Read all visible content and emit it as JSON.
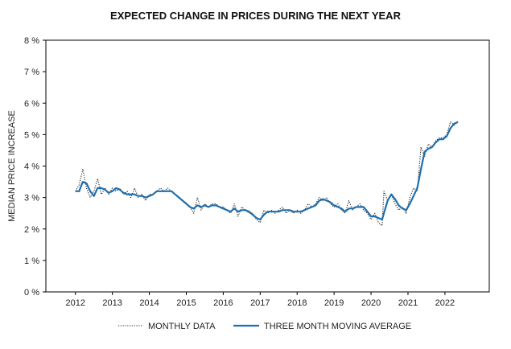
{
  "chart_data": {
    "type": "line",
    "title": "EXPECTED CHANGE IN PRICES DURING THE NEXT YEAR",
    "ylabel": "MEDIAN PRICE INCREASE",
    "xlabel": "",
    "ylim": [
      0,
      8
    ],
    "xlim": [
      2011.2,
      2023.2
    ],
    "yticks": [
      0,
      1,
      2,
      3,
      4,
      5,
      6,
      7,
      8
    ],
    "ytick_labels": [
      "0 %",
      "1 %",
      "2 %",
      "3 %",
      "4 %",
      "5 %",
      "6 %",
      "7 %",
      "8 %"
    ],
    "xtick_labels": [
      "2012",
      "2013",
      "2014",
      "2015",
      "2016",
      "2017",
      "2018",
      "2019",
      "2020",
      "2021",
      "2022"
    ],
    "xtick_positions": [
      2012,
      2013,
      2014,
      2015,
      2016,
      2017,
      2018,
      2019,
      2020,
      2021,
      2022
    ],
    "grid": false,
    "legend_position": "bottom",
    "series": [
      {
        "name": "MONTHLY DATA",
        "style": "dotted",
        "color": "#222222",
        "points": [
          [
            2012.0,
            3.2
          ],
          [
            2012.1,
            3.4
          ],
          [
            2012.2,
            3.9
          ],
          [
            2012.3,
            3.3
          ],
          [
            2012.4,
            3.0
          ],
          [
            2012.5,
            3.2
          ],
          [
            2012.6,
            3.6
          ],
          [
            2012.7,
            3.1
          ],
          [
            2012.8,
            3.3
          ],
          [
            2012.9,
            3.1
          ],
          [
            2013.0,
            3.3
          ],
          [
            2013.1,
            3.2
          ],
          [
            2013.2,
            3.3
          ],
          [
            2013.3,
            3.1
          ],
          [
            2013.4,
            3.2
          ],
          [
            2013.5,
            3.0
          ],
          [
            2013.6,
            3.3
          ],
          [
            2013.7,
            3.0
          ],
          [
            2013.8,
            3.1
          ],
          [
            2013.9,
            2.9
          ],
          [
            2014.0,
            3.1
          ],
          [
            2014.1,
            3.1
          ],
          [
            2014.2,
            3.2
          ],
          [
            2014.3,
            3.3
          ],
          [
            2014.4,
            3.2
          ],
          [
            2014.5,
            3.3
          ],
          [
            2014.6,
            3.2
          ],
          [
            2014.7,
            3.1
          ],
          [
            2014.8,
            3.0
          ],
          [
            2014.9,
            2.9
          ],
          [
            2015.0,
            2.8
          ],
          [
            2015.1,
            2.7
          ],
          [
            2015.2,
            2.5
          ],
          [
            2015.3,
            3.0
          ],
          [
            2015.4,
            2.6
          ],
          [
            2015.5,
            2.8
          ],
          [
            2015.6,
            2.7
          ],
          [
            2015.7,
            2.8
          ],
          [
            2015.8,
            2.8
          ],
          [
            2015.9,
            2.7
          ],
          [
            2016.0,
            2.7
          ],
          [
            2016.1,
            2.6
          ],
          [
            2016.2,
            2.5
          ],
          [
            2016.3,
            2.8
          ],
          [
            2016.4,
            2.4
          ],
          [
            2016.5,
            2.7
          ],
          [
            2016.6,
            2.6
          ],
          [
            2016.7,
            2.5
          ],
          [
            2016.8,
            2.5
          ],
          [
            2016.9,
            2.3
          ],
          [
            2017.0,
            2.2
          ],
          [
            2017.1,
            2.6
          ],
          [
            2017.2,
            2.5
          ],
          [
            2017.3,
            2.6
          ],
          [
            2017.4,
            2.5
          ],
          [
            2017.5,
            2.6
          ],
          [
            2017.6,
            2.7
          ],
          [
            2017.7,
            2.5
          ],
          [
            2017.8,
            2.6
          ],
          [
            2017.9,
            2.5
          ],
          [
            2018.0,
            2.6
          ],
          [
            2018.1,
            2.5
          ],
          [
            2018.2,
            2.6
          ],
          [
            2018.3,
            2.8
          ],
          [
            2018.4,
            2.7
          ],
          [
            2018.5,
            2.8
          ],
          [
            2018.6,
            3.0
          ],
          [
            2018.7,
            2.9
          ],
          [
            2018.8,
            3.0
          ],
          [
            2018.9,
            2.8
          ],
          [
            2019.0,
            2.7
          ],
          [
            2019.1,
            2.8
          ],
          [
            2019.2,
            2.6
          ],
          [
            2019.3,
            2.5
          ],
          [
            2019.4,
            2.9
          ],
          [
            2019.5,
            2.6
          ],
          [
            2019.6,
            2.7
          ],
          [
            2019.7,
            2.8
          ],
          [
            2019.8,
            2.6
          ],
          [
            2019.9,
            2.5
          ],
          [
            2020.0,
            2.3
          ],
          [
            2020.1,
            2.5
          ],
          [
            2020.2,
            2.2
          ],
          [
            2020.3,
            2.1
          ],
          [
            2020.35,
            3.2
          ],
          [
            2020.45,
            2.9
          ],
          [
            2020.55,
            3.1
          ],
          [
            2020.65,
            2.8
          ],
          [
            2020.75,
            2.6
          ],
          [
            2020.85,
            2.7
          ],
          [
            2020.95,
            2.5
          ],
          [
            2021.05,
            3.0
          ],
          [
            2021.15,
            3.3
          ],
          [
            2021.25,
            3.2
          ],
          [
            2021.35,
            4.6
          ],
          [
            2021.45,
            4.3
          ],
          [
            2021.55,
            4.7
          ],
          [
            2021.65,
            4.6
          ],
          [
            2021.75,
            4.8
          ],
          [
            2021.85,
            4.9
          ],
          [
            2021.95,
            4.9
          ],
          [
            2022.05,
            5.0
          ],
          [
            2022.15,
            5.4
          ],
          [
            2022.25,
            5.3
          ],
          [
            2022.35,
            5.4
          ]
        ]
      },
      {
        "name": "THREE MONTH MOVING AVERAGE",
        "style": "solid",
        "color": "#1f6fae",
        "points": [
          [
            2012.0,
            3.2
          ],
          [
            2012.1,
            3.2
          ],
          [
            2012.2,
            3.5
          ],
          [
            2012.3,
            3.45
          ],
          [
            2012.4,
            3.2
          ],
          [
            2012.5,
            3.05
          ],
          [
            2012.6,
            3.3
          ],
          [
            2012.7,
            3.3
          ],
          [
            2012.8,
            3.25
          ],
          [
            2012.9,
            3.15
          ],
          [
            2013.0,
            3.2
          ],
          [
            2013.1,
            3.3
          ],
          [
            2013.2,
            3.25
          ],
          [
            2013.3,
            3.15
          ],
          [
            2013.4,
            3.1
          ],
          [
            2013.5,
            3.1
          ],
          [
            2013.6,
            3.1
          ],
          [
            2013.7,
            3.05
          ],
          [
            2013.8,
            3.05
          ],
          [
            2013.9,
            3.0
          ],
          [
            2014.0,
            3.05
          ],
          [
            2014.1,
            3.1
          ],
          [
            2014.2,
            3.2
          ],
          [
            2014.3,
            3.2
          ],
          [
            2014.4,
            3.2
          ],
          [
            2014.5,
            3.2
          ],
          [
            2014.6,
            3.2
          ],
          [
            2014.7,
            3.1
          ],
          [
            2014.8,
            3.0
          ],
          [
            2014.9,
            2.9
          ],
          [
            2015.0,
            2.8
          ],
          [
            2015.1,
            2.7
          ],
          [
            2015.2,
            2.65
          ],
          [
            2015.3,
            2.75
          ],
          [
            2015.4,
            2.7
          ],
          [
            2015.5,
            2.75
          ],
          [
            2015.6,
            2.7
          ],
          [
            2015.7,
            2.75
          ],
          [
            2015.8,
            2.75
          ],
          [
            2015.9,
            2.7
          ],
          [
            2016.0,
            2.65
          ],
          [
            2016.1,
            2.6
          ],
          [
            2016.2,
            2.55
          ],
          [
            2016.3,
            2.65
          ],
          [
            2016.4,
            2.55
          ],
          [
            2016.5,
            2.6
          ],
          [
            2016.6,
            2.6
          ],
          [
            2016.7,
            2.55
          ],
          [
            2016.8,
            2.45
          ],
          [
            2016.9,
            2.35
          ],
          [
            2017.0,
            2.3
          ],
          [
            2017.1,
            2.45
          ],
          [
            2017.2,
            2.55
          ],
          [
            2017.3,
            2.55
          ],
          [
            2017.4,
            2.55
          ],
          [
            2017.5,
            2.55
          ],
          [
            2017.6,
            2.6
          ],
          [
            2017.7,
            2.6
          ],
          [
            2017.8,
            2.6
          ],
          [
            2017.9,
            2.55
          ],
          [
            2018.0,
            2.55
          ],
          [
            2018.1,
            2.55
          ],
          [
            2018.2,
            2.6
          ],
          [
            2018.3,
            2.65
          ],
          [
            2018.4,
            2.7
          ],
          [
            2018.5,
            2.75
          ],
          [
            2018.6,
            2.9
          ],
          [
            2018.7,
            2.95
          ],
          [
            2018.8,
            2.9
          ],
          [
            2018.9,
            2.85
          ],
          [
            2019.0,
            2.75
          ],
          [
            2019.1,
            2.7
          ],
          [
            2019.2,
            2.65
          ],
          [
            2019.3,
            2.55
          ],
          [
            2019.4,
            2.65
          ],
          [
            2019.5,
            2.65
          ],
          [
            2019.6,
            2.7
          ],
          [
            2019.7,
            2.7
          ],
          [
            2019.8,
            2.7
          ],
          [
            2019.9,
            2.55
          ],
          [
            2020.0,
            2.4
          ],
          [
            2020.1,
            2.4
          ],
          [
            2020.2,
            2.35
          ],
          [
            2020.3,
            2.3
          ],
          [
            2020.35,
            2.5
          ],
          [
            2020.45,
            2.9
          ],
          [
            2020.55,
            3.1
          ],
          [
            2020.65,
            2.95
          ],
          [
            2020.75,
            2.75
          ],
          [
            2020.85,
            2.65
          ],
          [
            2020.95,
            2.6
          ],
          [
            2021.05,
            2.8
          ],
          [
            2021.15,
            3.05
          ],
          [
            2021.25,
            3.3
          ],
          [
            2021.35,
            3.9
          ],
          [
            2021.45,
            4.45
          ],
          [
            2021.55,
            4.55
          ],
          [
            2021.65,
            4.6
          ],
          [
            2021.75,
            4.75
          ],
          [
            2021.85,
            4.85
          ],
          [
            2021.95,
            4.85
          ],
          [
            2022.05,
            4.95
          ],
          [
            2022.15,
            5.2
          ],
          [
            2022.25,
            5.35
          ],
          [
            2022.35,
            5.4
          ]
        ]
      }
    ]
  }
}
